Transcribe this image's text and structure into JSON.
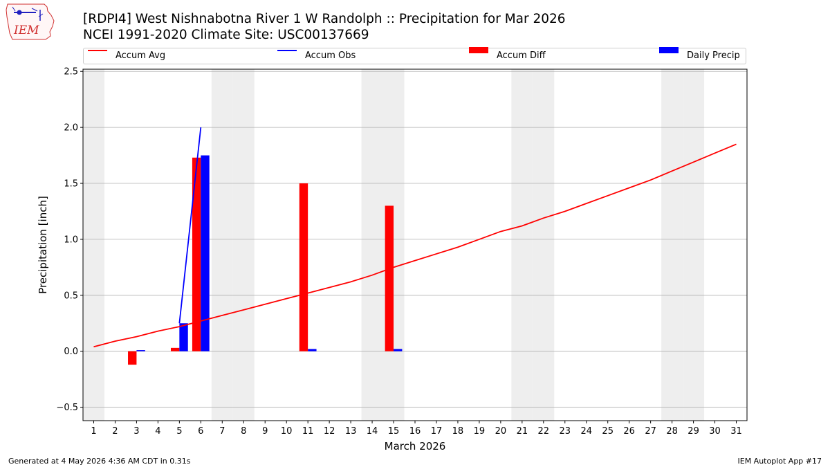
{
  "header": {
    "title_line1": "[RDPI4] West Nishnabotna River 1 W Randolph :: Precipitation for Mar 2026",
    "title_line2": "NCEI 1991-2020 Climate Site: USC00137669"
  },
  "logo": {
    "text": "IEM",
    "icon": "iem-iowa-logo-icon"
  },
  "footer": {
    "left": "Generated at 4 May 2026 4:36 AM CDT in 0.31s",
    "right": "IEM Autoplot App #17"
  },
  "colors": {
    "accum_avg": "#ff0000",
    "accum_obs": "#0000ff",
    "accum_diff": "#ff0000",
    "daily_precip": "#0000ff",
    "weekend_shade": "#eeeeee",
    "grid": "#b0b0b0"
  },
  "chart_data": {
    "type": "bar",
    "title": "[RDPI4] West Nishnabotna River 1 W Randolph :: Precipitation for Mar 2026",
    "xlabel": "March 2026",
    "ylabel": "Precipitation [inch]",
    "x": [
      1,
      2,
      3,
      4,
      5,
      6,
      7,
      8,
      9,
      10,
      11,
      12,
      13,
      14,
      15,
      16,
      17,
      18,
      19,
      20,
      21,
      22,
      23,
      24,
      25,
      26,
      27,
      28,
      29,
      30,
      31
    ],
    "xlim": [
      0.5,
      31.5
    ],
    "ylim": [
      -0.62,
      2.52
    ],
    "yticks": [
      -0.5,
      0.0,
      0.5,
      1.0,
      1.5,
      2.0,
      2.5
    ],
    "ytick_labels": [
      "−0.5",
      "0.0",
      "0.5",
      "1.0",
      "1.5",
      "2.0",
      "2.5"
    ],
    "grid": "horizontal",
    "legend_placement": "top",
    "shaded_days": [
      1,
      7,
      8,
      14,
      15,
      21,
      22,
      28,
      29
    ],
    "series": [
      {
        "name": "Accum Avg",
        "kind": "line",
        "x": [
          1,
          2,
          3,
          4,
          5,
          6,
          7,
          8,
          9,
          10,
          11,
          12,
          13,
          14,
          15,
          16,
          17,
          18,
          19,
          20,
          21,
          22,
          23,
          24,
          25,
          26,
          27,
          28,
          29,
          30,
          31
        ],
        "values": [
          0.04,
          0.09,
          0.13,
          0.18,
          0.22,
          0.27,
          0.32,
          0.37,
          0.42,
          0.47,
          0.52,
          0.57,
          0.62,
          0.68,
          0.75,
          0.81,
          0.87,
          0.93,
          1.0,
          1.07,
          1.12,
          1.19,
          1.25,
          1.32,
          1.39,
          1.46,
          1.53,
          1.61,
          1.69,
          1.77,
          1.85
        ]
      },
      {
        "name": "Accum Obs",
        "kind": "line",
        "x": [
          5,
          6
        ],
        "values": [
          0.25,
          2.0
        ]
      },
      {
        "name": "Accum Diff",
        "kind": "bar",
        "x": [
          3,
          5,
          6,
          11,
          15
        ],
        "values": [
          -0.12,
          0.03,
          1.73,
          1.5,
          1.3
        ]
      },
      {
        "name": "Daily Precip",
        "kind": "bar",
        "x": [
          3,
          5,
          6,
          11,
          15
        ],
        "values": [
          0.01,
          0.25,
          1.75,
          0.02,
          0.02
        ]
      }
    ]
  }
}
